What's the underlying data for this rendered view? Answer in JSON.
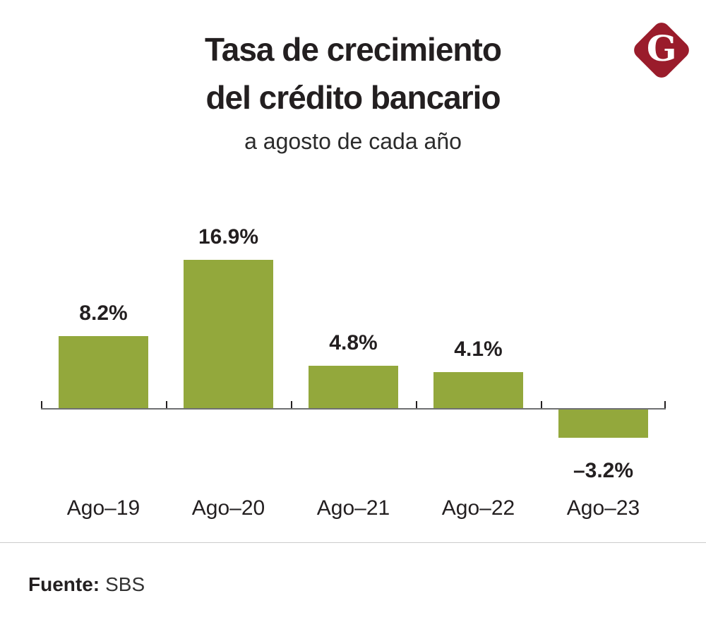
{
  "header": {
    "title_line1": "Tasa de crecimiento",
    "title_line2": "del crédito bancario",
    "subtitle": "a agosto de cada año",
    "logo_letter": "G",
    "logo_color": "#9a1c2b"
  },
  "chart_data": {
    "type": "bar",
    "title": "Tasa de crecimiento del crédito bancario",
    "subtitle": "a agosto de cada año",
    "categories": [
      "Ago–19",
      "Ago–20",
      "Ago–21",
      "Ago–22",
      "Ago–23"
    ],
    "values": [
      8.2,
      16.9,
      4.8,
      4.1,
      -3.2
    ],
    "value_labels": [
      "8.2%",
      "16.9%",
      "4.8%",
      "4.1%",
      "–3.2%"
    ],
    "xlabel": "",
    "ylabel": "",
    "ylim": [
      -5,
      18
    ],
    "grid": false,
    "legend": false,
    "bar_color": "#93a83c",
    "axis_color": "#6f7072",
    "tick_color": "#231f20",
    "label_color": "#231f20"
  },
  "footer": {
    "source_label": "Fuente:",
    "source_value": "SBS"
  }
}
